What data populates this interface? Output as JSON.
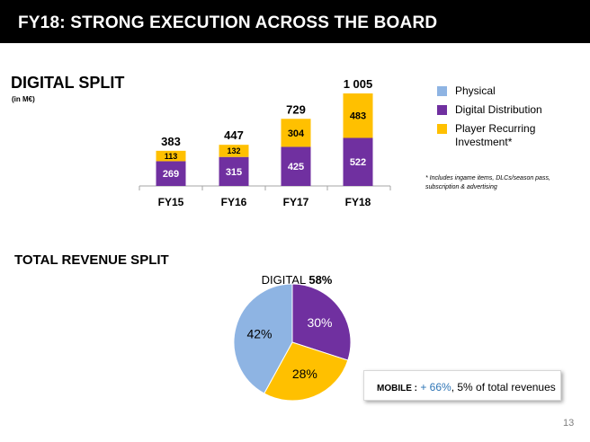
{
  "header": {
    "title": "FY18: STRONG EXECUTION ACROSS THE BOARD"
  },
  "digital_split": {
    "title": "DIGITAL SPLIT",
    "unit": "(in M€)"
  },
  "total_split": {
    "title": "TOTAL REVENUE SPLIT"
  },
  "legend": {
    "items": [
      {
        "label": "Physical",
        "color": "#8eb4e3"
      },
      {
        "label": "Digital Distribution",
        "color": "#7030a0"
      },
      {
        "label": "Player Recurring Investment*",
        "color": "#ffc000"
      }
    ]
  },
  "footnote": "* Includes ingame items, DLCs/season pass, subscription & advertising",
  "mobile": {
    "label": "MOBILE :",
    "growth": "+ 66%",
    "rest": ", 5% of total revenues"
  },
  "page_number": "13",
  "colors": {
    "physical": "#8eb4e3",
    "digital": "#7030a0",
    "pri": "#ffc000"
  },
  "chart_data": [
    {
      "type": "bar",
      "stacked": true,
      "title": "DIGITAL SPLIT",
      "unit": "(in M€)",
      "categories": [
        "FY15",
        "FY16",
        "FY17",
        "FY18"
      ],
      "series": [
        {
          "name": "Digital Distribution",
          "values": [
            269,
            315,
            425,
            522
          ],
          "color": "#7030a0"
        },
        {
          "name": "Player Recurring Investment*",
          "values": [
            113,
            132,
            304,
            483
          ],
          "color": "#ffc000"
        }
      ],
      "totals": [
        "383",
        "447",
        "729",
        "1 005"
      ],
      "ylim": [
        0,
        1005
      ]
    },
    {
      "type": "pie",
      "title_prefix": "DIGITAL",
      "title_value": "58%",
      "slices": [
        {
          "name": "Digital Distribution",
          "label": "30%",
          "value": 30,
          "color": "#7030a0"
        },
        {
          "name": "Player Recurring Investment*",
          "label": "28%",
          "value": 28,
          "color": "#ffc000"
        },
        {
          "name": "Physical",
          "label": "42%",
          "value": 42,
          "color": "#8eb4e3"
        }
      ]
    }
  ]
}
